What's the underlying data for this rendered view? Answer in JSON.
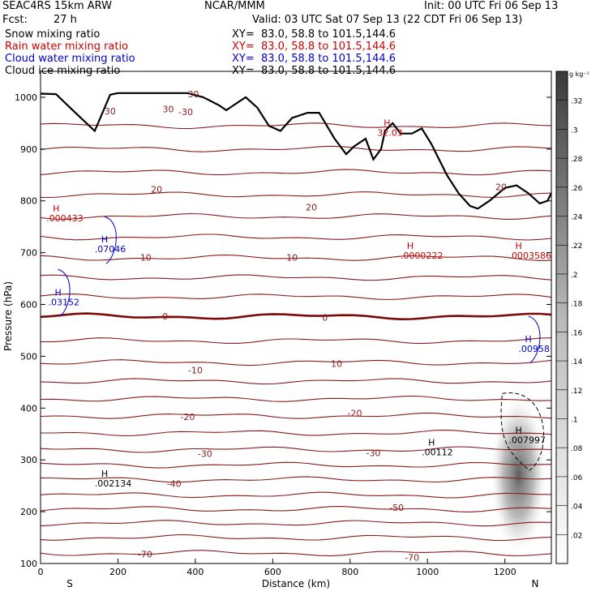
{
  "header": {
    "model": "SEAC4RS 15km ARW",
    "org": "NCAR/MMM",
    "init": "Init: 00 UTC Fri 06 Sep 13",
    "fcst_label": "Fcst:",
    "fcst_value": "27 h",
    "valid": "Valid: 03 UTC Sat 07 Sep 13 (22 CDT Fri 06 Sep 13)"
  },
  "fields": [
    {
      "label": "Snow mixing ratio",
      "xy": "XY=  83.0, 58.8 to 101.5,144.6",
      "color": "#000000"
    },
    {
      "label": "Rain water mixing ratio",
      "xy": "XY=  83.0, 58.8 to 101.5,144.6",
      "color": "#d00000"
    },
    {
      "label": "Cloud water mixing ratio",
      "xy": "XY=  83.0, 58.8 to 101.5,144.6",
      "color": "#0000cc"
    },
    {
      "label": "Cloud ice mixing ratio",
      "xy": "XY=  83.0, 58.8 to 101.5,144.6",
      "color": "#000000"
    }
  ],
  "chart_data": {
    "type": "cross-section",
    "xlabel": "Distance (km)",
    "ylabel": "Pressure (hPa)",
    "xlim": [
      0,
      1320
    ],
    "ylim": [
      1050,
      100
    ],
    "x_ticks": [
      0,
      200,
      400,
      600,
      800,
      1000,
      1200
    ],
    "y_ticks": [
      100,
      200,
      300,
      400,
      500,
      600,
      700,
      800,
      900,
      1000
    ],
    "x_tick_labels": [
      "0",
      "200",
      "400",
      "600",
      "800",
      "1000",
      "1200"
    ],
    "y_tick_labels": [
      "100",
      "200",
      "300",
      "400",
      "500",
      "600",
      "700",
      "800",
      "900",
      "1000"
    ],
    "end_labels": {
      "left": "S",
      "right": "N"
    },
    "colorbar": {
      "units": "g kg⁻¹",
      "ticks": [
        0.02,
        0.04,
        0.06,
        0.08,
        0.1,
        0.12,
        0.14,
        0.16,
        0.18,
        0.2,
        0.22,
        0.24,
        0.26,
        0.28,
        0.3,
        0.32
      ],
      "tick_labels": [
        ".02",
        ".04",
        ".06",
        ".08",
        ".1",
        ".12",
        ".14",
        ".16",
        ".18",
        ".2",
        ".22",
        ".24",
        ".26",
        ".28",
        ".3",
        ".32"
      ],
      "max": 0.34
    },
    "temperature_labels": [
      {
        "text": "-70",
        "x": 270,
        "p": 118
      },
      {
        "text": "-70",
        "x": 960,
        "p": 112
      },
      {
        "text": "-50",
        "x": 920,
        "p": 208
      },
      {
        "text": "-40",
        "x": 345,
        "p": 254
      },
      {
        "text": "-30",
        "x": 425,
        "p": 312
      },
      {
        "text": "-30",
        "x": 860,
        "p": 314
      },
      {
        "text": "-20",
        "x": 380,
        "p": 383
      },
      {
        "text": "-20",
        "x": 812,
        "p": 390
      },
      {
        "text": "-10",
        "x": 400,
        "p": 473
      },
      {
        "text": "10",
        "x": 765,
        "p": 486
      },
      {
        "text": "0",
        "x": 322,
        "p": 577
      },
      {
        "text": "0",
        "x": 735,
        "p": 575
      },
      {
        "text": "10",
        "x": 272,
        "p": 691
      },
      {
        "text": "10",
        "x": 650,
        "p": 691
      },
      {
        "text": "20",
        "x": 700,
        "p": 788
      },
      {
        "text": "20",
        "x": 1190,
        "p": 827
      },
      {
        "text": "20",
        "x": 300,
        "p": 822
      },
      {
        "text": "30",
        "x": 180,
        "p": 973
      },
      {
        "text": "30",
        "x": 330,
        "p": 977
      },
      {
        "text": "30",
        "x": 395,
        "p": 1006
      },
      {
        "text": "-30",
        "x": 375,
        "p": 972
      }
    ],
    "maxima": [
      {
        "field": "Snow mixing ratio",
        "label": "H",
        "value": ".002134",
        "x": 140,
        "p": 258
      },
      {
        "field": "Snow mixing ratio",
        "label": "H",
        "value": ".00112",
        "x": 985,
        "p": 318
      },
      {
        "field": "Cloud ice mixing ratio",
        "label": "H",
        "value": ".007997",
        "x": 1210,
        "p": 342
      },
      {
        "field": "Cloud water mixing ratio",
        "label": "H",
        "value": ".03152",
        "x": 20,
        "p": 608
      },
      {
        "field": "Cloud water mixing ratio",
        "label": "H",
        "value": ".07046",
        "x": 140,
        "p": 710
      },
      {
        "field": "Cloud water mixing ratio",
        "label": "H",
        "value": ".00958",
        "x": 1235,
        "p": 518
      },
      {
        "field": "Rain water mixing ratio",
        "label": "H",
        "value": ".000433",
        "x": 15,
        "p": 770
      },
      {
        "field": "Rain water mixing ratio",
        "label": "H",
        "value": ".0000222",
        "x": 930,
        "p": 698
      },
      {
        "field": "Rain water mixing ratio",
        "label": "H",
        "value": ".0003586",
        "x": 1210,
        "p": 698
      },
      {
        "field": "Temperature",
        "label": "H",
        "value": "32.03",
        "x": 870,
        "p": 935
      }
    ],
    "terrain_pressure": [
      [
        0,
        1007
      ],
      [
        40,
        1006
      ],
      [
        90,
        970
      ],
      [
        140,
        935
      ],
      [
        160,
        970
      ],
      [
        180,
        1005
      ],
      [
        200,
        1008
      ],
      [
        300,
        1008
      ],
      [
        380,
        1008
      ],
      [
        420,
        1000
      ],
      [
        460,
        985
      ],
      [
        480,
        975
      ],
      [
        500,
        985
      ],
      [
        530,
        1000
      ],
      [
        560,
        980
      ],
      [
        590,
        945
      ],
      [
        620,
        935
      ],
      [
        650,
        960
      ],
      [
        690,
        970
      ],
      [
        720,
        970
      ],
      [
        760,
        920
      ],
      [
        790,
        890
      ],
      [
        810,
        905
      ],
      [
        840,
        920
      ],
      [
        860,
        880
      ],
      [
        880,
        900
      ],
      [
        890,
        935
      ],
      [
        910,
        950
      ],
      [
        930,
        930
      ],
      [
        960,
        930
      ],
      [
        985,
        940
      ],
      [
        1010,
        910
      ],
      [
        1050,
        850
      ],
      [
        1080,
        815
      ],
      [
        1110,
        790
      ],
      [
        1130,
        785
      ],
      [
        1160,
        800
      ],
      [
        1200,
        825
      ],
      [
        1230,
        830
      ],
      [
        1260,
        815
      ],
      [
        1290,
        795
      ],
      [
        1310,
        800
      ],
      [
        1320,
        815
      ]
    ]
  }
}
